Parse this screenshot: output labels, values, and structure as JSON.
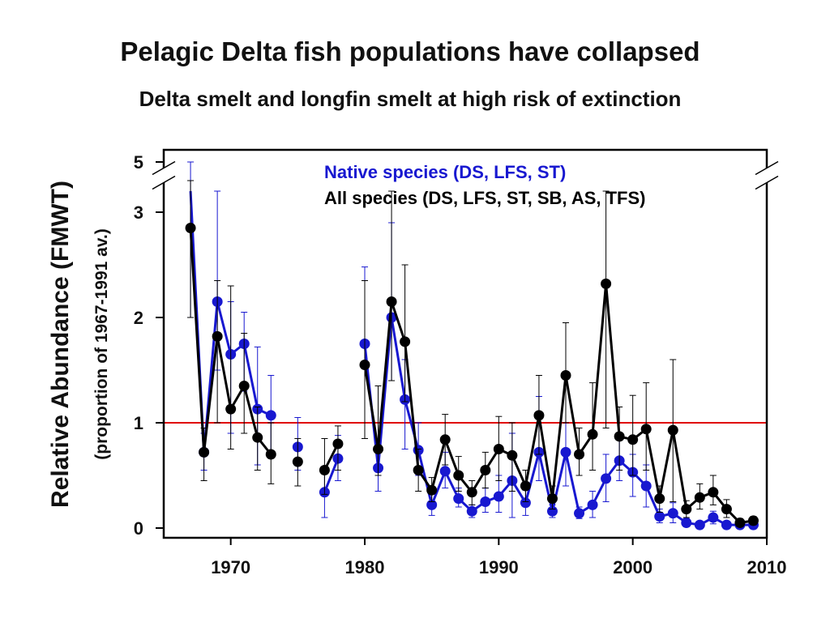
{
  "chart_data": {
    "type": "line",
    "title": "Pelagic Delta fish populations have collapsed",
    "subtitle": "Delta smelt and longfin smelt at high risk of extinction",
    "xlabel": "",
    "ylabel": "Relative Abundance (FMWT)",
    "ylabel2": "(proportion of 1967-1991 av.)",
    "xlim": [
      1965,
      2010
    ],
    "ylim": [
      0,
      5
    ],
    "y_axis_break": [
      3.35,
      4.8
    ],
    "x_ticks": [
      1970,
      1980,
      1990,
      2000,
      2010
    ],
    "x_tick_labels": [
      "1970",
      "1980",
      "1990",
      "2000",
      "2010"
    ],
    "y_ticks": [
      0,
      1,
      2,
      3,
      5
    ],
    "y_tick_labels": [
      "0",
      "1",
      "2",
      "3",
      "5"
    ],
    "reference_line": {
      "y": 1,
      "color": "#e00000"
    },
    "legend_position": "top-right",
    "series": [
      {
        "name": "Native species (DS, LFS, ST)",
        "color": "#1818d0",
        "points": [
          {
            "x": 1967,
            "y": 3.2,
            "lo": 2.0,
            "hi": 5.0
          },
          {
            "x": 1968,
            "y": 0.72,
            "lo": 0.55,
            "hi": 0.9
          },
          {
            "x": 1969,
            "y": 2.15,
            "lo": 1.5,
            "hi": 3.2
          },
          {
            "x": 1970,
            "y": 1.65,
            "lo": 0.9,
            "hi": 2.15
          },
          {
            "x": 1971,
            "y": 1.75,
            "lo": 1.3,
            "hi": 2.05
          },
          {
            "x": 1972,
            "y": 1.13,
            "lo": 0.6,
            "hi": 1.72
          },
          {
            "x": 1973,
            "y": 1.07,
            "lo": 0.7,
            "hi": 1.45
          },
          {
            "x": 1975,
            "y": 0.77,
            "lo": 0.55,
            "hi": 1.05
          },
          {
            "x": 1977,
            "y": 0.34,
            "lo": 0.1,
            "hi": 0.55
          },
          {
            "x": 1978,
            "y": 0.66,
            "lo": 0.45,
            "hi": 0.88
          },
          {
            "x": 1980,
            "y": 1.75,
            "lo": 0.85,
            "hi": 2.48
          },
          {
            "x": 1981,
            "y": 0.57,
            "lo": 0.35,
            "hi": 0.8
          },
          {
            "x": 1982,
            "y": 2.0,
            "lo": 1.4,
            "hi": 2.9
          },
          {
            "x": 1983,
            "y": 1.22,
            "lo": 0.75,
            "hi": 1.6
          },
          {
            "x": 1984,
            "y": 0.74,
            "lo": 0.5,
            "hi": 1.0
          },
          {
            "x": 1985,
            "y": 0.22,
            "lo": 0.12,
            "hi": 0.33
          },
          {
            "x": 1986,
            "y": 0.54,
            "lo": 0.38,
            "hi": 0.72
          },
          {
            "x": 1987,
            "y": 0.28,
            "lo": 0.2,
            "hi": 0.38
          },
          {
            "x": 1988,
            "y": 0.16,
            "lo": 0.1,
            "hi": 0.22
          },
          {
            "x": 1989,
            "y": 0.25,
            "lo": 0.15,
            "hi": 0.38
          },
          {
            "x": 1990,
            "y": 0.3,
            "lo": 0.15,
            "hi": 0.5
          },
          {
            "x": 1991,
            "y": 0.45,
            "lo": 0.1,
            "hi": 0.9
          },
          {
            "x": 1992,
            "y": 0.24,
            "lo": 0.12,
            "hi": 0.36
          },
          {
            "x": 1993,
            "y": 0.72,
            "lo": 0.45,
            "hi": 1.25
          },
          {
            "x": 1994,
            "y": 0.16,
            "lo": 0.1,
            "hi": 0.22
          },
          {
            "x": 1995,
            "y": 0.72,
            "lo": 0.4,
            "hi": 1.0
          },
          {
            "x": 1996,
            "y": 0.14,
            "lo": 0.09,
            "hi": 0.2
          },
          {
            "x": 1997,
            "y": 0.22,
            "lo": 0.1,
            "hi": 0.35
          },
          {
            "x": 1998,
            "y": 0.47,
            "lo": 0.25,
            "hi": 0.7
          },
          {
            "x": 1999,
            "y": 0.64,
            "lo": 0.45,
            "hi": 0.85
          },
          {
            "x": 2000,
            "y": 0.53,
            "lo": 0.3,
            "hi": 0.7
          },
          {
            "x": 2001,
            "y": 0.4,
            "lo": 0.2,
            "hi": 0.6
          },
          {
            "x": 2002,
            "y": 0.11,
            "lo": 0.05,
            "hi": 0.18
          },
          {
            "x": 2003,
            "y": 0.14,
            "lo": 0.05,
            "hi": 0.24
          },
          {
            "x": 2004,
            "y": 0.05,
            "lo": 0.02,
            "hi": 0.09
          },
          {
            "x": 2005,
            "y": 0.03,
            "lo": 0.01,
            "hi": 0.06
          },
          {
            "x": 2006,
            "y": 0.1,
            "lo": 0.04,
            "hi": 0.16
          },
          {
            "x": 2007,
            "y": 0.03,
            "lo": 0.01,
            "hi": 0.05
          },
          {
            "x": 2008,
            "y": 0.03,
            "lo": 0.01,
            "hi": 0.05
          },
          {
            "x": 2009,
            "y": 0.03,
            "lo": 0.01,
            "hi": 0.05
          }
        ]
      },
      {
        "name": "All species (DS, LFS, ST, SB, AS, TFS)",
        "color": "#000000",
        "points": [
          {
            "x": 1967,
            "y": 2.85,
            "lo": 2.0,
            "hi": 3.3
          },
          {
            "x": 1968,
            "y": 0.72,
            "lo": 0.45,
            "hi": 0.95
          },
          {
            "x": 1969,
            "y": 1.82,
            "lo": 1.0,
            "hi": 2.35
          },
          {
            "x": 1970,
            "y": 1.13,
            "lo": 0.75,
            "hi": 2.3
          },
          {
            "x": 1971,
            "y": 1.35,
            "lo": 0.9,
            "hi": 1.85
          },
          {
            "x": 1972,
            "y": 0.86,
            "lo": 0.55,
            "hi": 1.15
          },
          {
            "x": 1973,
            "y": 0.7,
            "lo": 0.42,
            "hi": 1.0
          },
          {
            "x": 1975,
            "y": 0.63,
            "lo": 0.4,
            "hi": 0.85
          },
          {
            "x": 1977,
            "y": 0.55,
            "lo": 0.32,
            "hi": 0.85
          },
          {
            "x": 1978,
            "y": 0.8,
            "lo": 0.55,
            "hi": 0.97
          },
          {
            "x": 1980,
            "y": 1.55,
            "lo": 0.85,
            "hi": 2.35
          },
          {
            "x": 1981,
            "y": 0.75,
            "lo": 0.5,
            "hi": 1.35
          },
          {
            "x": 1982,
            "y": 2.15,
            "lo": 1.4,
            "hi": 3.2
          },
          {
            "x": 1983,
            "y": 1.77,
            "lo": 1.2,
            "hi": 2.5
          },
          {
            "x": 1984,
            "y": 0.55,
            "lo": 0.35,
            "hi": 0.75
          },
          {
            "x": 1985,
            "y": 0.36,
            "lo": 0.25,
            "hi": 0.48
          },
          {
            "x": 1986,
            "y": 0.84,
            "lo": 0.6,
            "hi": 1.08
          },
          {
            "x": 1987,
            "y": 0.5,
            "lo": 0.35,
            "hi": 0.68
          },
          {
            "x": 1988,
            "y": 0.34,
            "lo": 0.22,
            "hi": 0.45
          },
          {
            "x": 1989,
            "y": 0.55,
            "lo": 0.38,
            "hi": 0.72
          },
          {
            "x": 1990,
            "y": 0.75,
            "lo": 0.45,
            "hi": 1.06
          },
          {
            "x": 1991,
            "y": 0.69,
            "lo": 0.35,
            "hi": 1.0
          },
          {
            "x": 1992,
            "y": 0.4,
            "lo": 0.25,
            "hi": 0.55
          },
          {
            "x": 1993,
            "y": 1.07,
            "lo": 0.7,
            "hi": 1.45
          },
          {
            "x": 1994,
            "y": 0.28,
            "lo": 0.18,
            "hi": 0.4
          },
          {
            "x": 1995,
            "y": 1.45,
            "lo": 1.0,
            "hi": 1.95
          },
          {
            "x": 1996,
            "y": 0.7,
            "lo": 0.5,
            "hi": 0.95
          },
          {
            "x": 1997,
            "y": 0.89,
            "lo": 0.55,
            "hi": 1.38
          },
          {
            "x": 1998,
            "y": 2.32,
            "lo": 0.95,
            "hi": 3.2
          },
          {
            "x": 1999,
            "y": 0.87,
            "lo": 0.55,
            "hi": 1.15
          },
          {
            "x": 2000,
            "y": 0.84,
            "lo": 0.5,
            "hi": 1.26
          },
          {
            "x": 2001,
            "y": 0.94,
            "lo": 0.55,
            "hi": 1.38
          },
          {
            "x": 2002,
            "y": 0.28,
            "lo": 0.15,
            "hi": 0.4
          },
          {
            "x": 2003,
            "y": 0.93,
            "lo": 0.25,
            "hi": 1.6
          },
          {
            "x": 2004,
            "y": 0.18,
            "lo": 0.1,
            "hi": 0.26
          },
          {
            "x": 2005,
            "y": 0.29,
            "lo": 0.18,
            "hi": 0.42
          },
          {
            "x": 2006,
            "y": 0.34,
            "lo": 0.22,
            "hi": 0.5
          },
          {
            "x": 2007,
            "y": 0.18,
            "lo": 0.1,
            "hi": 0.27
          },
          {
            "x": 2008,
            "y": 0.05,
            "lo": 0.02,
            "hi": 0.09
          },
          {
            "x": 2009,
            "y": 0.07,
            "lo": 0.03,
            "hi": 0.11
          }
        ]
      }
    ]
  }
}
